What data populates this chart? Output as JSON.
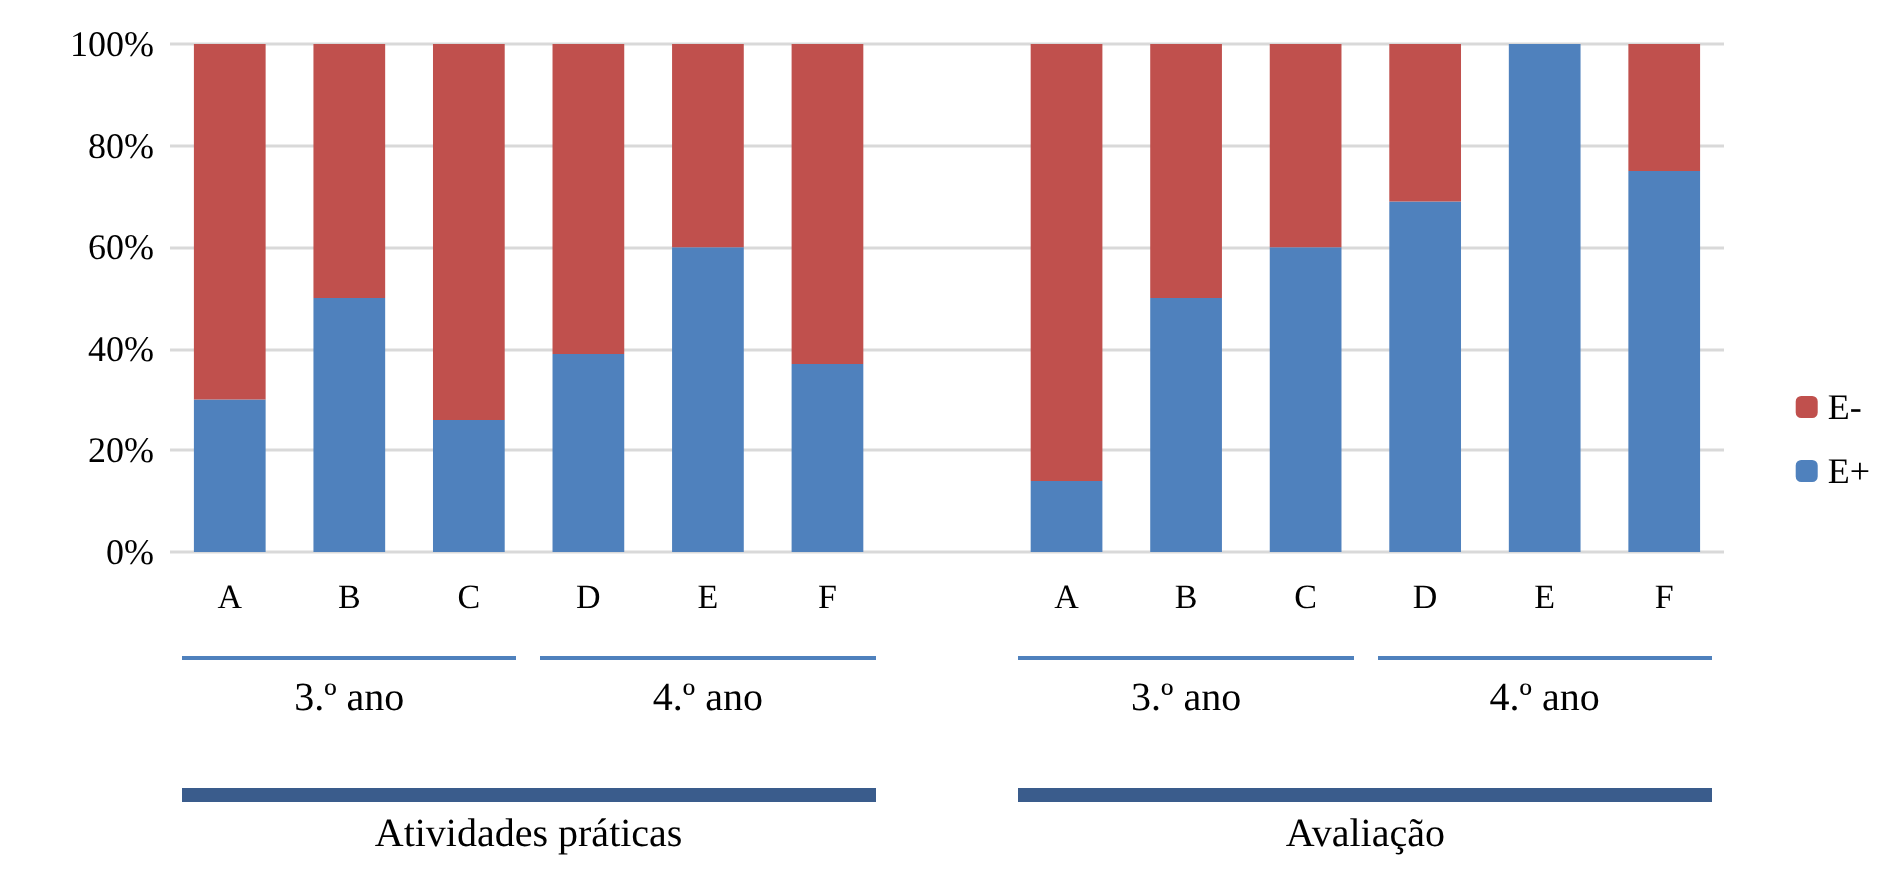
{
  "chart_data": {
    "type": "bar",
    "stacked": true,
    "categories": [
      "A",
      "B",
      "C",
      "D",
      "E",
      "F",
      null,
      "A",
      "B",
      "C",
      "D",
      "E",
      "F"
    ],
    "series": [
      {
        "name": "E+",
        "color": "#4f81bd",
        "values": [
          30,
          50,
          26,
          39,
          60,
          37,
          null,
          14,
          50,
          60,
          69,
          100,
          75
        ]
      },
      {
        "name": "E-",
        "color": "#c0504d",
        "values": [
          70,
          50,
          74,
          61,
          40,
          63,
          null,
          86,
          50,
          40,
          31,
          0,
          25
        ]
      }
    ],
    "ylim": [
      0,
      100
    ],
    "yticks": [
      {
        "value": 0,
        "label": "0%"
      },
      {
        "value": 20,
        "label": "20%"
      },
      {
        "value": 40,
        "label": "40%"
      },
      {
        "value": 60,
        "label": "60%"
      },
      {
        "value": 80,
        "label": "80%"
      },
      {
        "value": 100,
        "label": "100%"
      }
    ],
    "grid": "y",
    "legend": "right",
    "annotations": [
      "3.º ano",
      "4.º ano",
      "3.º ano",
      "4.º ano",
      "Atividades práticas",
      "Avaliação"
    ]
  }
}
